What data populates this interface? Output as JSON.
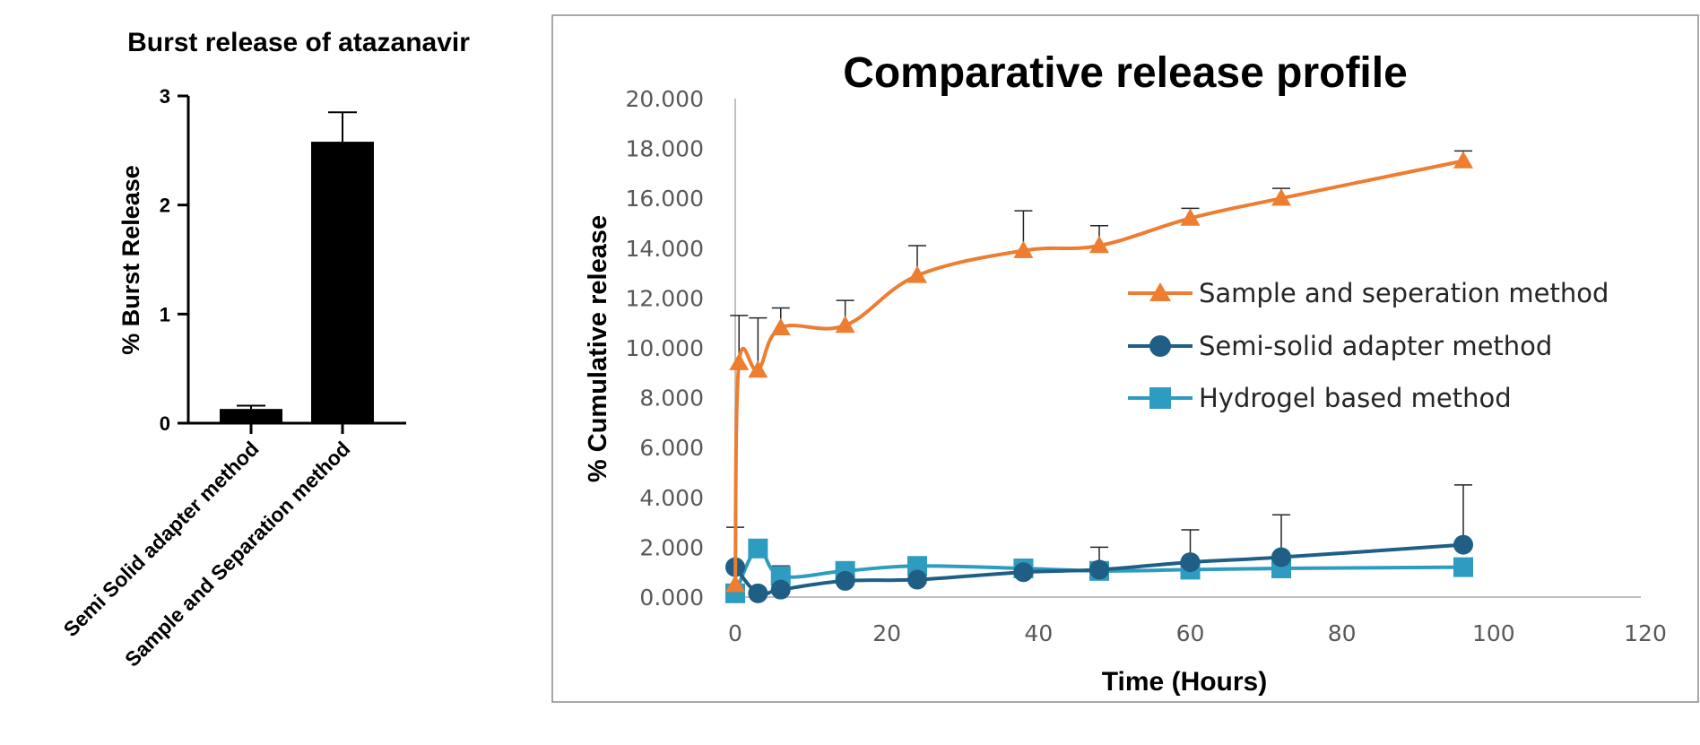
{
  "chart_data": [
    {
      "type": "bar",
      "title": "Burst release of atazanavir",
      "xlabel": "",
      "ylabel": "% Burst Release",
      "ylim": [
        0,
        3
      ],
      "yticks": [
        "0",
        "1",
        "2",
        "3"
      ],
      "categories": [
        "Semi Solid adapter method",
        "Sample and Separation method"
      ],
      "values": [
        0.13,
        2.58
      ],
      "errors": [
        0.03,
        0.27
      ],
      "bar_color": "#000000",
      "grid": false
    },
    {
      "type": "line",
      "title": "Comparative release profile",
      "xlabel": "Time (Hours)",
      "ylabel": "% Cumulative release",
      "xlim": [
        0,
        120
      ],
      "ylim": [
        0,
        20
      ],
      "xticks": [
        "0",
        "20",
        "40",
        "60",
        "80",
        "100",
        "120"
      ],
      "yticks": [
        "0.000",
        "2.000",
        "4.000",
        "6.000",
        "8.000",
        "10.000",
        "12.000",
        "14.000",
        "16.000",
        "18.000",
        "20.000"
      ],
      "legend_position": "right",
      "grid": false,
      "series": [
        {
          "name": "Sample and seperation method",
          "color": "#ED7D31",
          "marker": "triangle",
          "x": [
            0,
            0.5,
            3,
            6,
            14.5,
            24,
            38,
            48,
            60,
            72,
            96
          ],
          "y": [
            0.5,
            9.4,
            9.1,
            10.8,
            10.9,
            12.9,
            13.9,
            14.1,
            15.2,
            16.0,
            17.5
          ],
          "err": [
            0,
            1.9,
            2.1,
            0.8,
            1.0,
            1.2,
            1.6,
            0.8,
            0.4,
            0.4,
            0.4
          ]
        },
        {
          "name": "Semi-solid adapter method",
          "color": "#1F5F86",
          "marker": "circle",
          "x": [
            0,
            3,
            6,
            14.5,
            24,
            38,
            48,
            60,
            72,
            96
          ],
          "y": [
            1.2,
            0.15,
            0.3,
            0.65,
            0.7,
            1.0,
            1.1,
            1.4,
            1.6,
            2.1
          ],
          "err": [
            1.6,
            0,
            0,
            0,
            0,
            0,
            0.9,
            1.3,
            1.7,
            2.4
          ]
        },
        {
          "name": "Hydrogel based method",
          "color": "#2E9CC0",
          "marker": "square",
          "x": [
            0,
            3,
            6,
            14.5,
            24,
            38,
            48,
            60,
            72,
            96
          ],
          "y": [
            0.15,
            1.95,
            0.85,
            1.05,
            1.25,
            1.15,
            1.05,
            1.1,
            1.15,
            1.2
          ],
          "err": [
            0,
            0,
            0.4,
            0,
            0,
            0,
            0,
            0,
            0,
            0
          ]
        }
      ]
    }
  ]
}
